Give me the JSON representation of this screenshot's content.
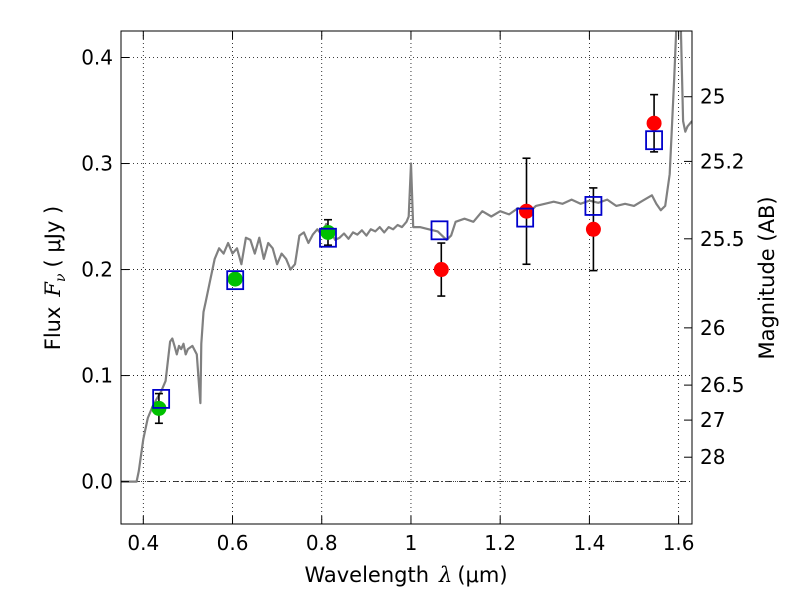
{
  "chart_data": {
    "type": "scatter",
    "xlabel_text": "Wavelength",
    "xlabel_symbol": "λ",
    "xlabel_unit": "(μm)",
    "ylabel_left_text": "Flux",
    "ylabel_left_symbol": "F",
    "ylabel_left_sub": "ν",
    "ylabel_left_unit": "( μJy )",
    "ylabel_right": "Magnitude (AB)",
    "xlim": [
      0.35,
      1.63
    ],
    "ylim": [
      -0.04,
      0.425
    ],
    "x_ticks": [
      0.4,
      0.6,
      0.8,
      1.0,
      1.2,
      1.4,
      1.6
    ],
    "x_tick_labels": [
      "0.4",
      "0.6",
      "0.8",
      "1",
      "1.2",
      "1.4",
      "1.6"
    ],
    "y_ticks": [
      0.0,
      0.1,
      0.2,
      0.3,
      0.4
    ],
    "y_tick_labels": [
      "0.0",
      "0.1",
      "0.2",
      "0.3",
      "0.4"
    ],
    "mag_ticks": [
      {
        "label": "25",
        "flux": 0.363
      },
      {
        "label": "25.2",
        "flux": 0.302
      },
      {
        "label": "25.5",
        "flux": 0.229
      },
      {
        "label": "26",
        "flux": 0.145
      },
      {
        "label": "26.5",
        "flux": 0.091
      },
      {
        "label": "27",
        "flux": 0.058
      },
      {
        "label": "28",
        "flux": 0.023
      }
    ],
    "grid": true,
    "colors": {
      "green_points": "#00c000",
      "red_points": "#ff0000",
      "model_squares": "#0000cc",
      "model_line": "#808080",
      "errorbars": "#000000"
    },
    "model_spectrum": [
      [
        0.35,
        0.0
      ],
      [
        0.385,
        0.0
      ],
      [
        0.39,
        0.01
      ],
      [
        0.4,
        0.04
      ],
      [
        0.41,
        0.06
      ],
      [
        0.42,
        0.07
      ],
      [
        0.43,
        0.078
      ],
      [
        0.44,
        0.085
      ],
      [
        0.45,
        0.095
      ],
      [
        0.46,
        0.132
      ],
      [
        0.465,
        0.135
      ],
      [
        0.47,
        0.128
      ],
      [
        0.475,
        0.12
      ],
      [
        0.48,
        0.128
      ],
      [
        0.485,
        0.125
      ],
      [
        0.49,
        0.13
      ],
      [
        0.495,
        0.12
      ],
      [
        0.5,
        0.125
      ],
      [
        0.51,
        0.128
      ],
      [
        0.52,
        0.12
      ],
      [
        0.525,
        0.09
      ],
      [
        0.528,
        0.074
      ],
      [
        0.53,
        0.13
      ],
      [
        0.535,
        0.16
      ],
      [
        0.54,
        0.17
      ],
      [
        0.55,
        0.19
      ],
      [
        0.56,
        0.21
      ],
      [
        0.57,
        0.22
      ],
      [
        0.58,
        0.215
      ],
      [
        0.59,
        0.225
      ],
      [
        0.6,
        0.215
      ],
      [
        0.61,
        0.22
      ],
      [
        0.62,
        0.205
      ],
      [
        0.63,
        0.23
      ],
      [
        0.64,
        0.228
      ],
      [
        0.65,
        0.215
      ],
      [
        0.66,
        0.23
      ],
      [
        0.67,
        0.21
      ],
      [
        0.68,
        0.225
      ],
      [
        0.69,
        0.22
      ],
      [
        0.7,
        0.205
      ],
      [
        0.71,
        0.215
      ],
      [
        0.72,
        0.21
      ],
      [
        0.73,
        0.2
      ],
      [
        0.74,
        0.205
      ],
      [
        0.75,
        0.232
      ],
      [
        0.76,
        0.235
      ],
      [
        0.77,
        0.225
      ],
      [
        0.78,
        0.233
      ],
      [
        0.79,
        0.238
      ],
      [
        0.8,
        0.233
      ],
      [
        0.81,
        0.243
      ],
      [
        0.82,
        0.236
      ],
      [
        0.83,
        0.228
      ],
      [
        0.84,
        0.23
      ],
      [
        0.85,
        0.234
      ],
      [
        0.86,
        0.229
      ],
      [
        0.87,
        0.235
      ],
      [
        0.88,
        0.233
      ],
      [
        0.89,
        0.237
      ],
      [
        0.9,
        0.232
      ],
      [
        0.91,
        0.238
      ],
      [
        0.92,
        0.236
      ],
      [
        0.93,
        0.24
      ],
      [
        0.94,
        0.235
      ],
      [
        0.95,
        0.24
      ],
      [
        0.96,
        0.238
      ],
      [
        0.97,
        0.242
      ],
      [
        0.98,
        0.24
      ],
      [
        0.99,
        0.245
      ],
      [
        0.995,
        0.25
      ],
      [
        1.0,
        0.3
      ],
      [
        1.005,
        0.24
      ],
      [
        1.02,
        0.24
      ],
      [
        1.04,
        0.238
      ],
      [
        1.06,
        0.236
      ],
      [
        1.08,
        0.228
      ],
      [
        1.09,
        0.232
      ],
      [
        1.1,
        0.245
      ],
      [
        1.12,
        0.248
      ],
      [
        1.14,
        0.245
      ],
      [
        1.16,
        0.255
      ],
      [
        1.18,
        0.25
      ],
      [
        1.2,
        0.255
      ],
      [
        1.22,
        0.252
      ],
      [
        1.24,
        0.258
      ],
      [
        1.26,
        0.252
      ],
      [
        1.28,
        0.26
      ],
      [
        1.3,
        0.262
      ],
      [
        1.32,
        0.264
      ],
      [
        1.34,
        0.262
      ],
      [
        1.36,
        0.266
      ],
      [
        1.38,
        0.262
      ],
      [
        1.4,
        0.265
      ],
      [
        1.42,
        0.263
      ],
      [
        1.44,
        0.266
      ],
      [
        1.46,
        0.26
      ],
      [
        1.48,
        0.262
      ],
      [
        1.5,
        0.26
      ],
      [
        1.52,
        0.265
      ],
      [
        1.54,
        0.27
      ],
      [
        1.55,
        0.262
      ],
      [
        1.56,
        0.256
      ],
      [
        1.57,
        0.26
      ],
      [
        1.58,
        0.29
      ],
      [
        1.59,
        0.38
      ],
      [
        1.595,
        0.43
      ],
      [
        1.6,
        0.43
      ],
      [
        1.605,
        0.43
      ],
      [
        1.61,
        0.34
      ],
      [
        1.615,
        0.33
      ],
      [
        1.62,
        0.335
      ],
      [
        1.63,
        0.34
      ]
    ],
    "green_points": [
      {
        "x": 0.435,
        "y": 0.069,
        "err_lo": 0.014,
        "err_hi": 0.014
      },
      {
        "x": 0.606,
        "y": 0.191,
        "err_lo": 0.0,
        "err_hi": 0.0
      },
      {
        "x": 0.814,
        "y": 0.235,
        "err_lo": 0.012,
        "err_hi": 0.012
      }
    ],
    "red_points": [
      {
        "x": 1.068,
        "y": 0.2,
        "err_lo": 0.025,
        "err_hi": 0.025
      },
      {
        "x": 1.259,
        "y": 0.255,
        "err_lo": 0.05,
        "err_hi": 0.05
      },
      {
        "x": 1.409,
        "y": 0.238,
        "err_lo": 0.039,
        "err_hi": 0.039
      },
      {
        "x": 1.545,
        "y": 0.338,
        "err_lo": 0.027,
        "err_hi": 0.027
      }
    ],
    "model_squares": [
      {
        "x": 0.44,
        "y": 0.078
      },
      {
        "x": 0.606,
        "y": 0.19
      },
      {
        "x": 0.814,
        "y": 0.23
      },
      {
        "x": 1.064,
        "y": 0.237
      },
      {
        "x": 1.256,
        "y": 0.249
      },
      {
        "x": 1.409,
        "y": 0.26
      },
      {
        "x": 1.545,
        "y": 0.322
      }
    ]
  }
}
